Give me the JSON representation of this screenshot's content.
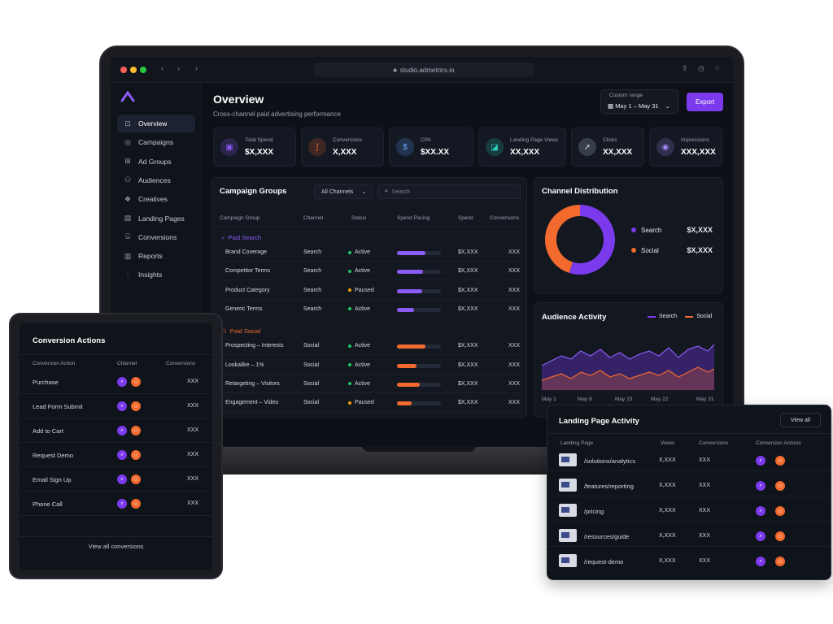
{
  "browser": {
    "url": "studio.admetrics.io"
  },
  "sidebar": {
    "items": [
      {
        "label": "Overview",
        "icon": "overview-icon",
        "active": true
      },
      {
        "label": "Campaigns",
        "icon": "campaigns-icon"
      },
      {
        "label": "Ad Groups",
        "icon": "ad-groups-icon"
      },
      {
        "label": "Audiences",
        "icon": "audiences-icon"
      },
      {
        "label": "Creatives",
        "icon": "creatives-icon"
      },
      {
        "label": "Landing Pages",
        "icon": "landing-pages-icon"
      },
      {
        "label": "Conversions",
        "icon": "conversions-icon"
      },
      {
        "label": "Reports",
        "icon": "reports-icon"
      },
      {
        "label": "Insights",
        "icon": "insights-icon"
      }
    ]
  },
  "header": {
    "title": "Overview",
    "subtitle": "Cross-channel paid advertising performance",
    "range_label": "Custom range",
    "range_value": "May 1 – May 31",
    "export_label": "Export"
  },
  "kpis": [
    {
      "label": "Total Spend",
      "value": "$X,XXX",
      "icon": "wallet-icon",
      "color": "#8b5cf6"
    },
    {
      "label": "Conversions",
      "value": "X,XXX",
      "icon": "conversion-icon",
      "color": "#f26a2e"
    },
    {
      "label": "CPA",
      "value": "$XX.XX",
      "icon": "dollar-icon",
      "color": "#60a5fa"
    },
    {
      "label": "Landing Page Views",
      "value": "XX,XXX",
      "icon": "page-views-icon",
      "color": "#2dd4bf"
    },
    {
      "label": "Clicks",
      "value": "XX,XXX",
      "icon": "cursor-icon",
      "color": "#cbd5e1"
    },
    {
      "label": "Impressions",
      "value": "XXX,XXX",
      "icon": "eye-icon",
      "color": "#a78bfa"
    }
  ],
  "campaign_groups": {
    "title": "Campaign Groups",
    "filter": "All Channels",
    "search_placeholder": "Search",
    "columns": [
      "Campaign Group",
      "Channel",
      "Status",
      "Spend Pacing",
      "Spend",
      "Conversions"
    ],
    "groups": [
      {
        "name": "Paid Search",
        "color": "#8b5cf6",
        "rows": [
          {
            "name": "Brand Coverage",
            "channel": "Search",
            "status": "Active",
            "pacing": 0.65,
            "spend": "$X,XXX",
            "conv": "XXX"
          },
          {
            "name": "Competitor Terms",
            "channel": "Search",
            "status": "Active",
            "pacing": 0.6,
            "spend": "$X,XXX",
            "conv": "XXX"
          },
          {
            "name": "Product Category",
            "channel": "Search",
            "status": "Paused",
            "pacing": 0.58,
            "spend": "$X,XXX",
            "conv": "XXX"
          },
          {
            "name": "Generic Terms",
            "channel": "Search",
            "status": "Active",
            "pacing": 0.38,
            "spend": "$X,XXX",
            "conv": "XXX"
          }
        ]
      },
      {
        "name": "Paid Social",
        "color": "#f26a2e",
        "rows": [
          {
            "name": "Prospecting – Interests",
            "channel": "Social",
            "status": "Active",
            "pacing": 0.65,
            "spend": "$X,XXX",
            "conv": "XXX"
          },
          {
            "name": "Lookalike – 1%",
            "channel": "Social",
            "status": "Active",
            "pacing": 0.45,
            "spend": "$X,XXX",
            "conv": "XXX"
          },
          {
            "name": "Retargeting – Visitors",
            "channel": "Social",
            "status": "Active",
            "pacing": 0.52,
            "spend": "$X,XXX",
            "conv": "XXX"
          },
          {
            "name": "Engagement – Video",
            "channel": "Social",
            "status": "Paused",
            "pacing": 0.34,
            "spend": "$X,XXX",
            "conv": "XXX"
          }
        ]
      }
    ]
  },
  "channel_distribution": {
    "title": "Channel Distribution",
    "items": [
      {
        "name": "Search",
        "value": "$X,XXX",
        "share": 0.55,
        "color": "#7c3aed"
      },
      {
        "name": "Social",
        "value": "$X,XXX",
        "share": 0.45,
        "color": "#f26a2e"
      }
    ]
  },
  "audience_activity": {
    "title": "Audience Activity",
    "legend": [
      "Search",
      "Social"
    ],
    "x_labels": [
      "May 1",
      "May 8",
      "May 15",
      "May 22",
      "May 31"
    ]
  },
  "conversion_actions": {
    "title": "Conversion Actions",
    "columns": [
      "Conversion Action",
      "Channel",
      "Conversions"
    ],
    "rows": [
      {
        "name": "Purchase",
        "value": "XXX"
      },
      {
        "name": "Lead Form Submit",
        "value": "XXX"
      },
      {
        "name": "Add to Cart",
        "value": "XXX"
      },
      {
        "name": "Request Demo",
        "value": "XXX"
      },
      {
        "name": "Email Sign Up",
        "value": "XXX"
      },
      {
        "name": "Phone Call",
        "value": "XXX"
      }
    ],
    "footer": "View all conversions"
  },
  "landing_activity": {
    "title": "Landing Page Activity",
    "view_all": "View all",
    "columns": [
      "Landing Page",
      "Views",
      "Conversions",
      "Conversion Actions"
    ],
    "rows": [
      {
        "page": "/solutions/analytics",
        "views": "X,XXX",
        "conv": "XXX"
      },
      {
        "page": "/features/reporting",
        "views": "X,XXX",
        "conv": "XXX"
      },
      {
        "page": "/pricing",
        "views": "X,XXX",
        "conv": "XXX"
      },
      {
        "page": "/resources/guide",
        "views": "X,XXX",
        "conv": "XXX"
      },
      {
        "page": "/request-demo",
        "views": "X,XXX",
        "conv": "XXX"
      }
    ]
  }
}
